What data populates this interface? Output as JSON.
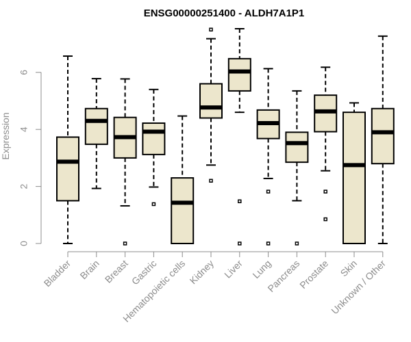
{
  "chart_data": {
    "type": "boxplot",
    "title": "ENSG00000251400 - ALDH7A1P1",
    "xlabel": "",
    "ylabel": "Expression",
    "ylim": [
      0,
      7.5
    ],
    "yticks": [
      0,
      2,
      4,
      6
    ],
    "box_color": "#ece6cc",
    "categories": [
      "Bladder",
      "Brain",
      "Breast",
      "Gastric",
      "Hematopoietic cells",
      "Kidney",
      "Liver",
      "Lung",
      "Pancreas",
      "Prostate",
      "Skin",
      "Unknown / Other"
    ],
    "boxes": [
      {
        "min": 0.0,
        "q1": 1.5,
        "median": 2.87,
        "q3": 3.73,
        "max": 6.57,
        "outliers": []
      },
      {
        "min": 1.93,
        "q1": 3.48,
        "median": 4.3,
        "q3": 4.73,
        "max": 5.78,
        "outliers": []
      },
      {
        "min": 1.32,
        "q1": 3.0,
        "median": 3.73,
        "q3": 4.42,
        "max": 5.77,
        "outliers": [
          0.0
        ]
      },
      {
        "min": 1.98,
        "q1": 3.12,
        "median": 3.92,
        "q3": 4.22,
        "max": 5.4,
        "outliers": [
          1.38
        ]
      },
      {
        "min": 0.0,
        "q1": 0.0,
        "median": 1.43,
        "q3": 2.3,
        "max": 4.47,
        "outliers": []
      },
      {
        "min": 2.75,
        "q1": 4.4,
        "median": 4.77,
        "q3": 5.6,
        "max": 7.18,
        "outliers": [
          2.2,
          7.5
        ]
      },
      {
        "min": 4.6,
        "q1": 5.35,
        "median": 6.03,
        "q3": 6.48,
        "max": 7.53,
        "outliers": [
          1.48,
          0.0
        ]
      },
      {
        "min": 2.28,
        "q1": 3.68,
        "median": 4.22,
        "q3": 4.68,
        "max": 6.13,
        "outliers": [
          1.82,
          0.0
        ]
      },
      {
        "min": 1.5,
        "q1": 2.85,
        "median": 3.52,
        "q3": 3.9,
        "max": 5.35,
        "outliers": [
          0.0
        ]
      },
      {
        "min": 2.55,
        "q1": 3.92,
        "median": 4.63,
        "q3": 5.2,
        "max": 6.18,
        "outliers": [
          1.82,
          0.85
        ]
      },
      {
        "min": 0.0,
        "q1": 0.0,
        "median": 2.75,
        "q3": 4.6,
        "max": 4.93,
        "outliers": []
      },
      {
        "min": 0.0,
        "q1": 2.8,
        "median": 3.9,
        "q3": 4.73,
        "max": 7.27,
        "outliers": []
      }
    ]
  }
}
